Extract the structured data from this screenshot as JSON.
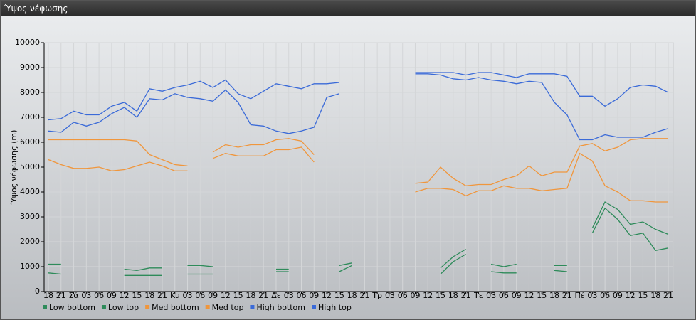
{
  "window_title": "Ύψος νέφωσης",
  "chart_data": {
    "type": "line",
    "y_label": "Ύψος νέφωσης (m)",
    "categories": [
      "18",
      "21",
      "Σά",
      "03",
      "06",
      "09",
      "12",
      "15",
      "18",
      "21",
      "Κυ",
      "03",
      "06",
      "09",
      "12",
      "15",
      "18",
      "21",
      "Δε",
      "03",
      "06",
      "09",
      "12",
      "15",
      "18",
      "21",
      "Τρ",
      "03",
      "06",
      "09",
      "12",
      "15",
      "18",
      "21",
      "Τε",
      "03",
      "06",
      "09",
      "12",
      "15",
      "18",
      "21",
      "Πέ",
      "03",
      "06",
      "09",
      "12",
      "15",
      "18",
      "21"
    ],
    "ylim": [
      0,
      10000
    ],
    "yticks": [
      0,
      1000,
      2000,
      3000,
      4000,
      5000,
      6000,
      7000,
      8000,
      9000,
      10000
    ],
    "grid": true,
    "series": [
      {
        "name": "Low bottom",
        "color": "#2e8b5a",
        "values": [
          750,
          700,
          null,
          null,
          null,
          null,
          650,
          650,
          650,
          650,
          null,
          700,
          700,
          700,
          null,
          null,
          null,
          null,
          800,
          800,
          null,
          null,
          null,
          800,
          1050,
          null,
          null,
          null,
          null,
          null,
          null,
          700,
          1200,
          1500,
          null,
          800,
          750,
          750,
          null,
          null,
          850,
          800,
          null,
          2350,
          3350,
          2900,
          2250,
          2350,
          1650,
          1750
        ]
      },
      {
        "name": "Low top",
        "color": "#2e8b5a",
        "values": [
          1100,
          1100,
          null,
          null,
          null,
          null,
          900,
          850,
          950,
          950,
          null,
          1050,
          1050,
          1000,
          null,
          null,
          null,
          null,
          900,
          900,
          null,
          null,
          null,
          1050,
          1150,
          null,
          null,
          null,
          null,
          null,
          null,
          950,
          1400,
          1700,
          null,
          1100,
          1000,
          1100,
          null,
          null,
          1050,
          1050,
          null,
          2550,
          3600,
          3300,
          2700,
          2800,
          2500,
          2300
        ]
      },
      {
        "name": "Med bottom",
        "color": "#f0963c",
        "values": [
          5300,
          5100,
          4950,
          4950,
          5000,
          4850,
          4900,
          5050,
          5200,
          5050,
          4850,
          4850,
          null,
          5350,
          5550,
          5450,
          5450,
          5450,
          5700,
          5700,
          5800,
          5200,
          null,
          null,
          null,
          null,
          null,
          null,
          null,
          4000,
          4150,
          4150,
          4100,
          3850,
          4050,
          4050,
          4250,
          4150,
          4150,
          4050,
          4100,
          4150,
          5550,
          5250,
          4250,
          4000,
          3650,
          3650,
          3600,
          3600
        ]
      },
      {
        "name": "Med top",
        "color": "#f0963c",
        "values": [
          6100,
          6100,
          6100,
          6100,
          6100,
          6100,
          6100,
          6050,
          5500,
          5300,
          5100,
          5050,
          null,
          5600,
          5900,
          5800,
          5900,
          5900,
          6100,
          6150,
          6050,
          5500,
          null,
          null,
          null,
          null,
          null,
          null,
          null,
          4350,
          4400,
          5000,
          4550,
          4250,
          4300,
          4300,
          4500,
          4650,
          5050,
          4650,
          4800,
          4800,
          5850,
          5950,
          5650,
          5800,
          6100,
          6150,
          6150,
          6150
        ]
      },
      {
        "name": "High bottom",
        "color": "#3a6ad8",
        "values": [
          6450,
          6400,
          6800,
          6650,
          6800,
          7150,
          7400,
          7000,
          7750,
          7700,
          7950,
          7800,
          7750,
          7650,
          8100,
          7600,
          6700,
          6650,
          6450,
          6350,
          6450,
          6600,
          7800,
          7950,
          null,
          null,
          null,
          null,
          null,
          8750,
          8750,
          8700,
          8550,
          8500,
          8600,
          8500,
          8450,
          8350,
          8450,
          8400,
          7600,
          7100,
          6100,
          6100,
          6300,
          6200,
          6200,
          6200,
          6400,
          6550
        ]
      },
      {
        "name": "High top",
        "color": "#3a6ad8",
        "values": [
          6900,
          6950,
          7250,
          7100,
          7100,
          7450,
          7600,
          7250,
          8150,
          8050,
          8200,
          8300,
          8450,
          8200,
          8500,
          7950,
          7750,
          8050,
          8350,
          8250,
          8150,
          8350,
          8350,
          8400,
          null,
          null,
          null,
          null,
          null,
          8800,
          8800,
          8800,
          8800,
          8700,
          8800,
          8800,
          8700,
          8600,
          8750,
          8750,
          8750,
          8650,
          7850,
          7850,
          7450,
          7750,
          8200,
          8300,
          8250,
          8000
        ]
      }
    ]
  }
}
